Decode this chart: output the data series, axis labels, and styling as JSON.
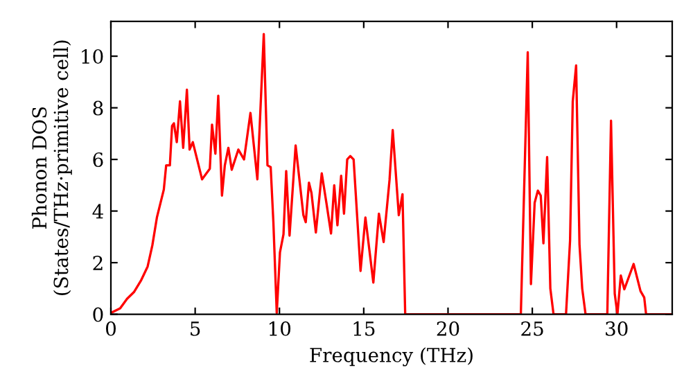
{
  "chart_data": {
    "type": "line",
    "xlabel": "Frequency (THz)",
    "ylabel": "Phonon DOS\n(States/THz·primitive cell)",
    "xlim": [
      0,
      33.3
    ],
    "ylim": [
      0,
      11.35
    ],
    "xticks": [
      0,
      5,
      10,
      15,
      20,
      25,
      30
    ],
    "yticks": [
      0,
      2,
      4,
      6,
      8,
      10
    ],
    "grid": false,
    "legend": false,
    "marker": "none",
    "line_style": "solid",
    "series": [
      {
        "color": "#ff0000",
        "x": [
          0,
          0.55,
          0.96,
          1.37,
          1.78,
          2.18,
          2.46,
          2.73,
          3.14,
          3.28,
          3.5,
          3.63,
          3.74,
          3.91,
          4.1,
          4.29,
          4.51,
          4.67,
          4.86,
          5.41,
          5.87,
          6.0,
          6.2,
          6.37,
          6.59,
          6.76,
          6.97,
          7.17,
          7.56,
          7.9,
          8.28,
          8.69,
          9.07,
          9.29,
          9.48,
          9.64,
          9.84,
          10.03,
          10.24,
          10.4,
          10.6,
          10.96,
          11.42,
          11.56,
          11.75,
          11.9,
          12.16,
          12.51,
          12.79,
          13.06,
          13.25,
          13.44,
          13.66,
          13.83,
          14.02,
          14.2,
          14.4,
          14.81,
          15.1,
          15.57,
          15.9,
          16.18,
          16.53,
          16.72,
          17.08,
          17.3,
          17.46,
          24.32,
          24.73,
          24.92,
          25.14,
          25.33,
          25.5,
          25.66,
          25.88,
          26.07,
          26.26,
          27.0,
          27.24,
          27.4,
          27.6,
          27.8,
          27.96,
          28.16,
          29.45,
          29.67,
          29.89,
          30.05,
          30.25,
          30.46,
          31.01,
          31.42,
          31.64,
          31.75,
          33.3
        ],
        "values": [
          0.05,
          0.23,
          0.6,
          0.86,
          1.3,
          1.85,
          2.67,
          3.75,
          4.83,
          5.77,
          5.77,
          7.3,
          7.4,
          6.67,
          8.25,
          6.45,
          8.7,
          6.38,
          6.67,
          5.23,
          5.64,
          7.35,
          6.22,
          8.47,
          4.6,
          5.77,
          6.45,
          5.6,
          6.38,
          6.0,
          7.8,
          5.23,
          10.86,
          5.77,
          5.7,
          3.57,
          0.05,
          2.4,
          3.1,
          5.55,
          3.05,
          6.54,
          3.84,
          3.57,
          5.1,
          4.7,
          3.17,
          5.46,
          4.3,
          3.13,
          5.0,
          3.45,
          5.37,
          3.9,
          6.0,
          6.13,
          6.0,
          1.68,
          3.75,
          1.23,
          3.9,
          2.8,
          5.2,
          7.14,
          3.84,
          4.65,
          0,
          0,
          10.15,
          1.17,
          4.32,
          4.79,
          4.6,
          2.75,
          6.09,
          1.0,
          0,
          0,
          2.85,
          8.25,
          9.64,
          2.7,
          1.0,
          0,
          0,
          7.5,
          0.8,
          0,
          1.5,
          0.97,
          1.95,
          0.9,
          0.65,
          0,
          0
        ]
      }
    ]
  }
}
